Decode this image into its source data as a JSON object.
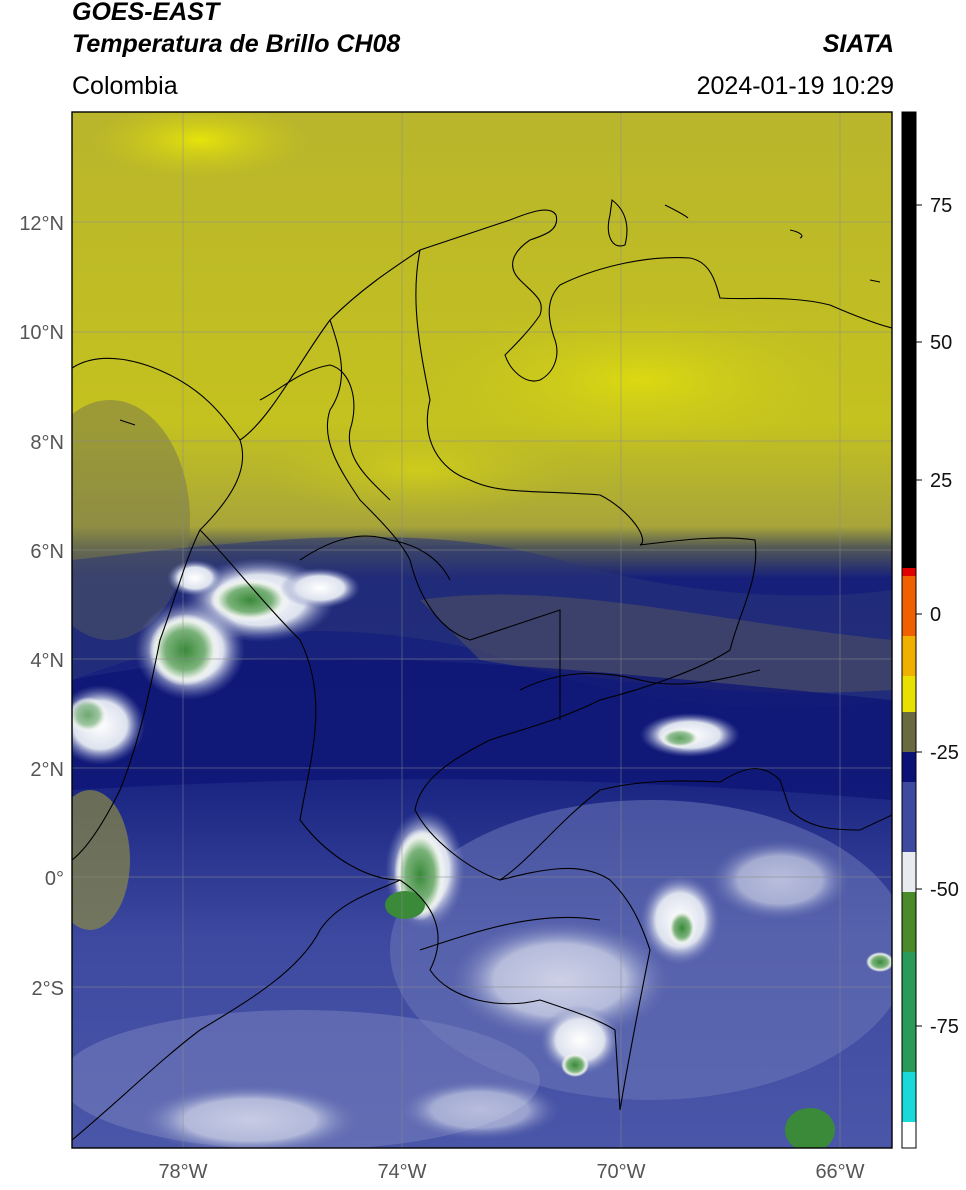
{
  "header": {
    "satellite": "GOES-EAST",
    "product": "Temperatura de Brillo CH08",
    "region": "Colombia",
    "agency": "SIATA",
    "timestamp": "2024-01-19 10:29"
  },
  "map": {
    "lat_labels": [
      "12°N",
      "10°N",
      "8°N",
      "6°N",
      "4°N",
      "2°N",
      "0°",
      "2°S"
    ],
    "lon_labels": [
      "78°W",
      "74°W",
      "70°W",
      "66°W"
    ],
    "colors": {
      "ocean_dry": "#b8b52a",
      "dry_bright": "#d8d814",
      "moist_dark": "#1c2a7a",
      "deep_navy": "#0f1a78",
      "cloud_white": "#f0f4f8",
      "cold_green": "#3f8a3a",
      "border": "#000000"
    }
  },
  "colorbar": {
    "tick_labels": [
      "75",
      "50",
      "25",
      "0",
      "-25",
      "-50",
      "-75"
    ],
    "colors": [
      "#ffffff",
      "#19d9d9",
      "#2a9a5a",
      "#4a8a2a",
      "#e8ecf0",
      "#3c4aa0",
      "#0a1278",
      "#55553a",
      "#f0e000",
      "#f08000",
      "#e00000",
      "#000000"
    ]
  }
}
